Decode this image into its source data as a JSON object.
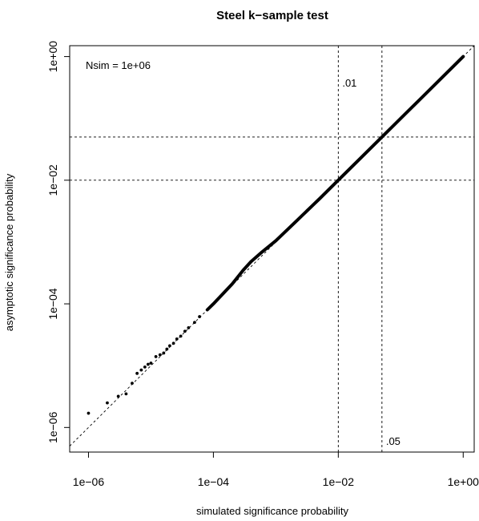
{
  "chart_data": {
    "type": "scatter",
    "title": "Steel k−sample test",
    "xlabel": "simulated significance probability",
    "ylabel": "asymptotic significance probability",
    "x_scale": "log10",
    "y_scale": "log10",
    "xlim": [
      5e-07,
      1.5
    ],
    "ylim": [
      4e-07,
      1.5
    ],
    "xticks": [
      {
        "value": 1e-06,
        "label": "1e−06"
      },
      {
        "value": 0.0001,
        "label": "1e−04"
      },
      {
        "value": 0.01,
        "label": "1e−02"
      },
      {
        "value": 1,
        "label": "1e+00"
      }
    ],
    "yticks": [
      {
        "value": 1e-06,
        "label": "1e−06"
      },
      {
        "value": 0.0001,
        "label": "1e−04"
      },
      {
        "value": 0.01,
        "label": "1e−02"
      },
      {
        "value": 1,
        "label": "1e+00"
      }
    ],
    "annotation": "Nsim = 1e+06",
    "reference_lines": {
      "diagonal": "y = x",
      "vertical": [
        {
          "value": 0.01,
          "label": ".01"
        },
        {
          "value": 0.05,
          "label": ".05"
        }
      ],
      "horizontal": [
        0.01,
        0.05
      ]
    },
    "scatter_points": [
      {
        "x": 1e-06,
        "y": 1.7e-06
      },
      {
        "x": 2e-06,
        "y": 2.5e-06
      },
      {
        "x": 3e-06,
        "y": 3.2e-06
      },
      {
        "x": 4e-06,
        "y": 3.5e-06
      },
      {
        "x": 5e-06,
        "y": 5.2e-06
      },
      {
        "x": 6e-06,
        "y": 7.5e-06
      },
      {
        "x": 7e-06,
        "y": 8.5e-06
      },
      {
        "x": 8e-06,
        "y": 9.5e-06
      },
      {
        "x": 9e-06,
        "y": 1.05e-05
      },
      {
        "x": 1e-05,
        "y": 1.1e-05
      },
      {
        "x": 1.2e-05,
        "y": 1.4e-05
      },
      {
        "x": 1.4e-05,
        "y": 1.5e-05
      },
      {
        "x": 1.6e-05,
        "y": 1.6e-05
      },
      {
        "x": 1.8e-05,
        "y": 1.85e-05
      },
      {
        "x": 2e-05,
        "y": 2.1e-05
      },
      {
        "x": 2.3e-05,
        "y": 2.3e-05
      },
      {
        "x": 2.6e-05,
        "y": 2.7e-05
      },
      {
        "x": 3e-05,
        "y": 3e-05
      },
      {
        "x": 3.5e-05,
        "y": 3.6e-05
      },
      {
        "x": 4e-05,
        "y": 4.1e-05
      },
      {
        "x": 5e-05,
        "y": 5e-05
      },
      {
        "x": 6e-05,
        "y": 6.2e-05
      }
    ],
    "series": [
      {
        "x": [
          8e-05,
          0.0001,
          0.0002,
          0.0003,
          0.0004,
          0.0006,
          0.001,
          0.002,
          0.005,
          0.01,
          0.05,
          0.2,
          1.0
        ],
        "y": [
          8e-05,
          0.0001,
          0.00021,
          0.00035,
          0.00048,
          0.00069,
          0.00105,
          0.00205,
          0.005,
          0.01,
          0.05,
          0.2,
          1.0
        ]
      }
    ],
    "grid": false,
    "legend": "none"
  }
}
